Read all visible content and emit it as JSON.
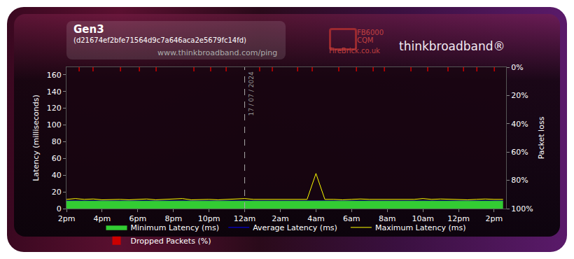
{
  "chart_data": {
    "type": "line",
    "title": "Gen3",
    "subtitle": "(d21674ef2bfe71564d9c7a646aca2e5679fc14fd)",
    "source": "www.thinkbroadband.com/ping",
    "logos": [
      "FB6000",
      "CQM",
      "FireBrick.co.uk",
      "thinkbroadband®"
    ],
    "ylabel": "Latency (milliseconds)",
    "y2label": "Packet loss",
    "x": [
      14,
      14.5,
      15,
      15.5,
      16,
      16.5,
      17,
      17.5,
      18,
      18.5,
      19,
      19.5,
      20,
      20.5,
      21,
      21.5,
      22,
      22.5,
      23,
      23.5,
      24,
      24.5,
      25,
      25.5,
      26,
      26.5,
      27,
      27.5,
      28,
      28.5,
      29,
      29.5,
      30,
      30.5,
      31,
      31.5,
      32,
      32.5,
      33,
      33.5,
      34,
      34.5,
      35,
      35.5,
      36,
      36.5,
      37,
      37.5,
      38,
      38.5
    ],
    "xlim": [
      14,
      38.67
    ],
    "xticks": [
      {
        "value": 14,
        "label": "2pm"
      },
      {
        "value": 16,
        "label": "4pm"
      },
      {
        "value": 18,
        "label": "6pm"
      },
      {
        "value": 20,
        "label": "8pm"
      },
      {
        "value": 22,
        "label": "10pm"
      },
      {
        "value": 24,
        "label": "12am"
      },
      {
        "value": 26,
        "label": "2am"
      },
      {
        "value": 28,
        "label": "4am"
      },
      {
        "value": 30,
        "label": "6am"
      },
      {
        "value": 32,
        "label": "8am"
      },
      {
        "value": 34,
        "label": "10am"
      },
      {
        "value": 36,
        "label": "12pm"
      },
      {
        "value": 38,
        "label": "2pm"
      }
    ],
    "ylim": [
      0,
      169
    ],
    "yticks": [
      0,
      20,
      40,
      60,
      80,
      100,
      120,
      140,
      160
    ],
    "y2lim": [
      100,
      0
    ],
    "y2ticks": [
      {
        "value": 0,
        "label": "0%"
      },
      {
        "value": 20,
        "label": "20%"
      },
      {
        "value": 40,
        "label": "40%"
      },
      {
        "value": 60,
        "label": "60%"
      },
      {
        "value": 80,
        "label": "80%"
      },
      {
        "value": 100,
        "label": "100%"
      }
    ],
    "grid": false,
    "legend": "bottom",
    "series": [
      {
        "name": "Minimum Latency (ms)",
        "type": "area",
        "color": "#33cc33",
        "values": [
          9,
          9,
          9,
          9,
          9,
          9,
          9,
          9,
          9,
          9,
          9,
          9,
          9,
          9,
          9,
          9,
          9,
          9,
          9,
          9,
          9,
          9,
          9,
          9,
          9,
          9,
          9,
          9,
          9,
          9,
          9,
          9,
          9,
          9,
          9,
          9,
          9,
          9,
          9,
          9,
          9,
          9,
          9,
          9,
          9,
          9,
          9,
          9,
          9,
          9
        ]
      },
      {
        "name": "Average Latency (ms)",
        "type": "line",
        "color": "#0000ff",
        "values": [
          9.2,
          9.2,
          9.2,
          9.2,
          9.2,
          9.2,
          9.2,
          9.2,
          9.2,
          9.2,
          9.2,
          9.2,
          9.2,
          9.2,
          9.2,
          9.2,
          9.2,
          9.2,
          9.2,
          9.2,
          9.2,
          9.2,
          9.2,
          9.2,
          9.2,
          9.2,
          9.2,
          9.2,
          9.2,
          9.2,
          9.2,
          9.2,
          9.2,
          9.2,
          9.2,
          9.2,
          9.2,
          9.2,
          9.2,
          9.2,
          9.2,
          9.2,
          9.2,
          9.2,
          9.2,
          9.2,
          9.2,
          9.2,
          9.2,
          9.2
        ]
      },
      {
        "name": "Maximum Latency (ms)",
        "type": "line",
        "color": "#ffff00",
        "values": [
          11,
          12,
          11,
          11.5,
          10.5,
          11,
          11,
          10.5,
          11,
          11.5,
          10.5,
          11,
          11,
          12,
          10.5,
          11,
          11,
          10.5,
          11,
          11.5,
          12,
          11,
          11,
          10.5,
          11,
          11,
          10.5,
          11,
          42,
          11,
          11,
          10.5,
          11,
          11.5,
          11,
          11,
          11,
          10.5,
          11,
          11,
          12,
          11,
          11.5,
          11,
          11,
          10.5,
          11,
          11.5,
          11,
          11
        ]
      },
      {
        "name": "Dropped Packets (%)",
        "type": "bar",
        "axis": "y2",
        "color": "#cc0000",
        "x": [
          14.71,
          15.49,
          17.03,
          18.09,
          19.03,
          21.15,
          22.09,
          22.96,
          24.84,
          25.55,
          26.97,
          27.79,
          29.28,
          30.27,
          31.21,
          31.84,
          33.33,
          34.27,
          35.41,
          36.28,
          37.03,
          38.01
        ],
        "values": [
          3,
          3,
          3,
          3,
          3,
          3,
          3,
          3,
          3,
          3,
          3,
          3,
          3,
          3,
          3,
          3,
          3,
          3,
          3,
          3,
          3,
          3
        ]
      }
    ],
    "annotations": [
      {
        "x": 24,
        "text": "17 / 07 / 2024"
      }
    ]
  }
}
